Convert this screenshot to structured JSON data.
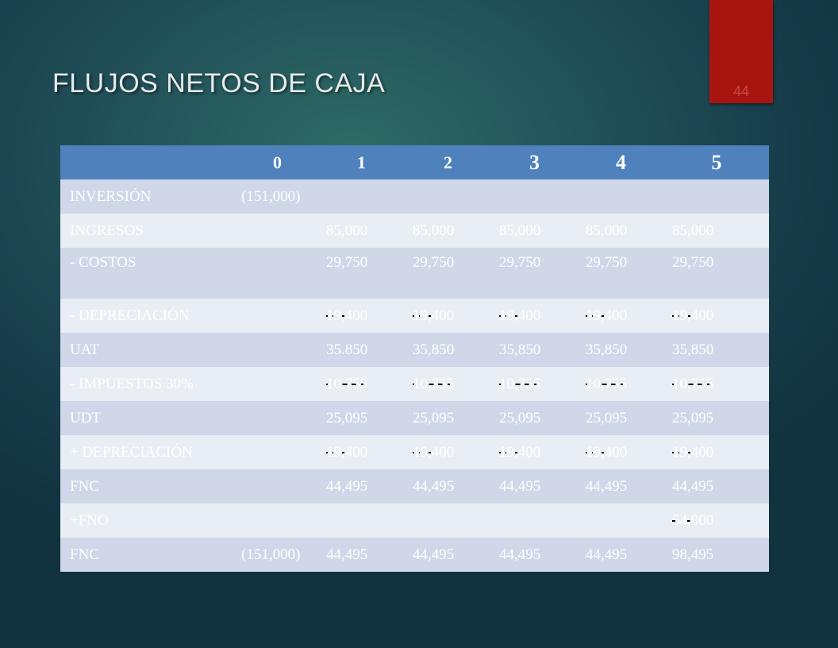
{
  "title": "FLUJOS NETOS DE CAJA",
  "page_number": "44",
  "colors": {
    "accent_tab": "#a8150f",
    "header_bg": "#4f81bd",
    "row_odd": "#cfd7e8",
    "row_even": "#e9edf4"
  },
  "table": {
    "headers": [
      "0",
      "1",
      "2",
      "3",
      "4",
      "5"
    ],
    "rows": [
      {
        "label": "INVERSIÓN",
        "y0": "(151,000)",
        "values": [
          "",
          "",
          "",
          "",
          ""
        ]
      },
      {
        "label": "INGRESOS",
        "y0": "",
        "values": [
          "85,000",
          "85,000",
          "85,000",
          "85,000",
          "85,000"
        ]
      },
      {
        "label": "- COSTOS",
        "y0": "",
        "values": [
          "29,750",
          "29,750",
          "29,750",
          "29,750",
          "29,750"
        ]
      },
      {
        "label": "- DEPRECIACIÓN",
        "y0": "",
        "values": [
          "19,400",
          "19,400",
          "19,400",
          "19,400",
          "19,400"
        ]
      },
      {
        "label": "UAT",
        "y0": "",
        "values": [
          "35.850",
          "35,850",
          "35,850",
          "35,850",
          "35,850"
        ]
      },
      {
        "label": "- IMPUESTOS 30%",
        "y0": "",
        "values": [
          "10,755",
          "10,755",
          "10,755",
          "10,755",
          "10,755"
        ]
      },
      {
        "label": "UDT",
        "y0": "",
        "values": [
          "25,095",
          "25,095",
          "25,095",
          "25,095",
          "25,095"
        ]
      },
      {
        "label": "+ DEPRECIACIÓN",
        "y0": "",
        "values": [
          "19,400",
          "19,400",
          "19,400",
          "19,400",
          "19,400"
        ]
      },
      {
        "label": "FNC",
        "y0": "",
        "values": [
          "44,495",
          "44,495",
          "44,495",
          "44,495",
          "44,495"
        ]
      },
      {
        "label": "+FNO",
        "y0": "",
        "values": [
          "",
          "",
          "",
          "",
          "54,000"
        ]
      },
      {
        "label": "FNC",
        "y0": "(151,000)",
        "values": [
          "44,495",
          "44,495",
          "44,495",
          "44,495",
          "98,495"
        ]
      }
    ]
  }
}
